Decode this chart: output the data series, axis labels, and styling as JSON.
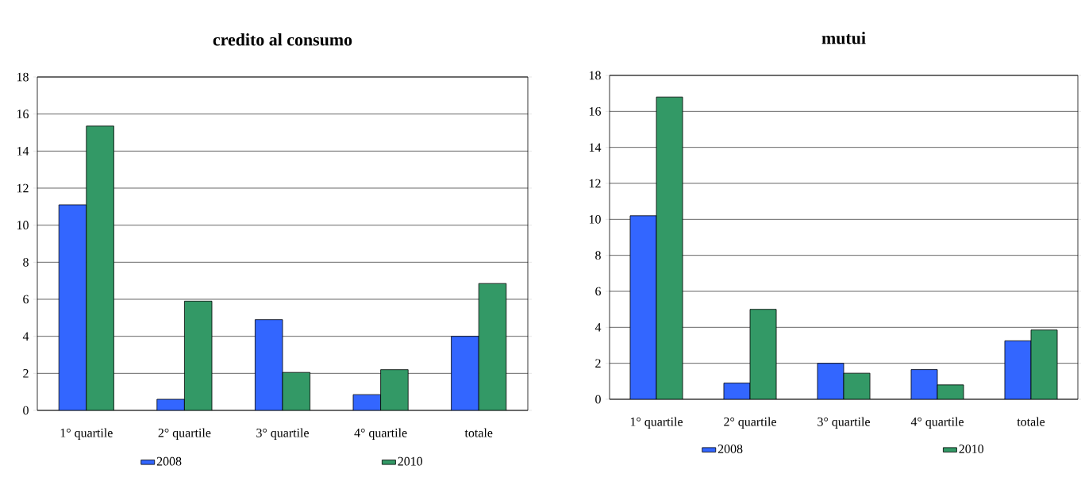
{
  "chart_data": [
    {
      "type": "bar",
      "title": "credito al consumo",
      "categories": [
        "1° quartile",
        "2° quartile",
        "3° quartile",
        "4° quartile",
        "totale"
      ],
      "series": [
        {
          "name": "2008",
          "color": "#3366ff",
          "values": [
            11.1,
            0.6,
            4.9,
            0.85,
            4.0
          ]
        },
        {
          "name": "2010",
          "color": "#339966",
          "values": [
            15.35,
            5.9,
            2.05,
            2.2,
            6.85
          ]
        }
      ],
      "ylim": [
        0,
        18
      ],
      "yticks": [
        0,
        2,
        4,
        6,
        8,
        10,
        12,
        14,
        16,
        18
      ],
      "grid": "y",
      "legend": "bottom"
    },
    {
      "type": "bar",
      "title": "mutui",
      "categories": [
        "1° quartile",
        "2° quartile",
        "3° quartile",
        "4° quartile",
        "totale"
      ],
      "series": [
        {
          "name": "2008",
          "color": "#3366ff",
          "values": [
            10.2,
            0.9,
            2.0,
            1.65,
            3.25
          ]
        },
        {
          "name": "2010",
          "color": "#339966",
          "values": [
            16.8,
            5.0,
            1.45,
            0.8,
            3.85
          ]
        }
      ],
      "ylim": [
        0,
        18
      ],
      "yticks": [
        0,
        2,
        4,
        6,
        8,
        10,
        12,
        14,
        16,
        18
      ],
      "grid": "y",
      "legend": "bottom"
    }
  ]
}
